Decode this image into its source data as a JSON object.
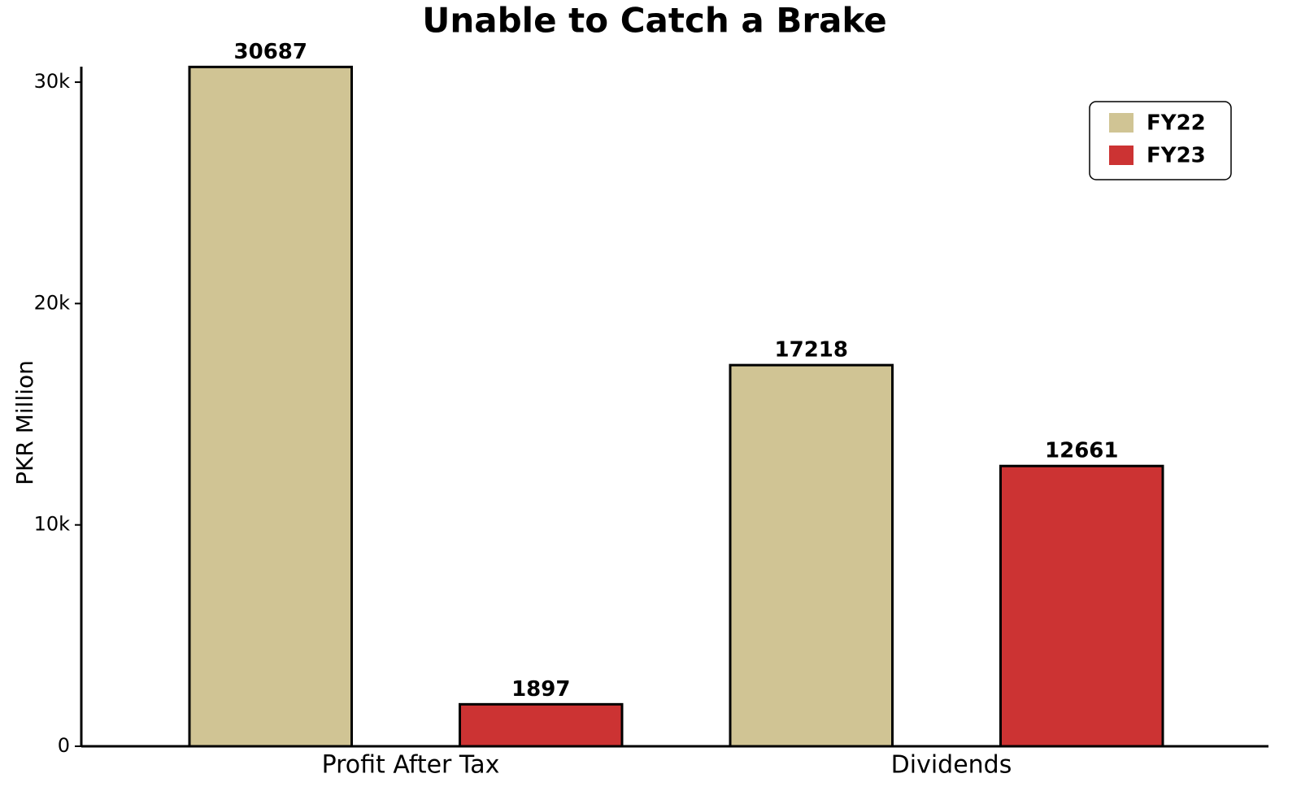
{
  "chart_data": {
    "type": "bar",
    "title": "Unable to Catch a Brake",
    "y_label": "PKR Million",
    "categories": [
      "Profit After Tax",
      "Dividends"
    ],
    "series": [
      {
        "name": "FY22",
        "color": "#d0c494",
        "values": [
          30687,
          17218
        ]
      },
      {
        "name": "FY23",
        "color": "#cc3333",
        "values": [
          1897,
          12661
        ]
      }
    ],
    "ylim": [
      0,
      30700
    ],
    "yticks": [
      0,
      {
        "value": 10000,
        "label": "10k"
      },
      {
        "value": 20000,
        "label": "20k"
      },
      {
        "value": 30000,
        "label": "30k"
      }
    ],
    "legend": "upper right"
  }
}
